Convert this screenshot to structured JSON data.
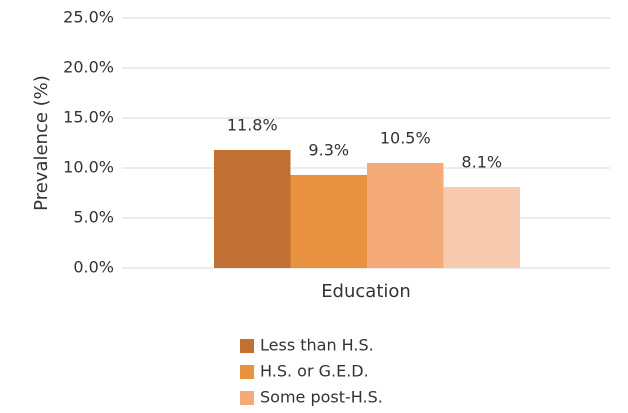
{
  "chart_data": {
    "type": "bar",
    "y_label": "Prevalence (%)",
    "categories": [
      "Education"
    ],
    "series": [
      {
        "name": "Less than H.S.",
        "color": "#c07033",
        "values": [
          11.8
        ],
        "value_labels": [
          "11.8%"
        ]
      },
      {
        "name": "H.S. or G.E.D.",
        "color": "#e8913e",
        "values": [
          9.3
        ],
        "value_labels": [
          "9.3%"
        ]
      },
      {
        "name": "Some post-H.S.",
        "color": "#f5ab77",
        "values": [
          10.5
        ],
        "value_labels": [
          "10.5%"
        ]
      },
      {
        "color": "#f8cbb0",
        "values": [
          8.1
        ],
        "value_labels": [
          "8.1%"
        ]
      }
    ],
    "ylim": [
      0,
      25
    ],
    "yticks": [
      {
        "value": 0,
        "label": "0.0%"
      },
      {
        "value": 5,
        "label": "5.0%"
      },
      {
        "value": 10,
        "label": "10.0%"
      },
      {
        "value": 15,
        "label": "15.0%"
      },
      {
        "value": 20,
        "label": "20.0%"
      },
      {
        "value": 25,
        "label": "25.0%"
      }
    ],
    "grid": true
  }
}
